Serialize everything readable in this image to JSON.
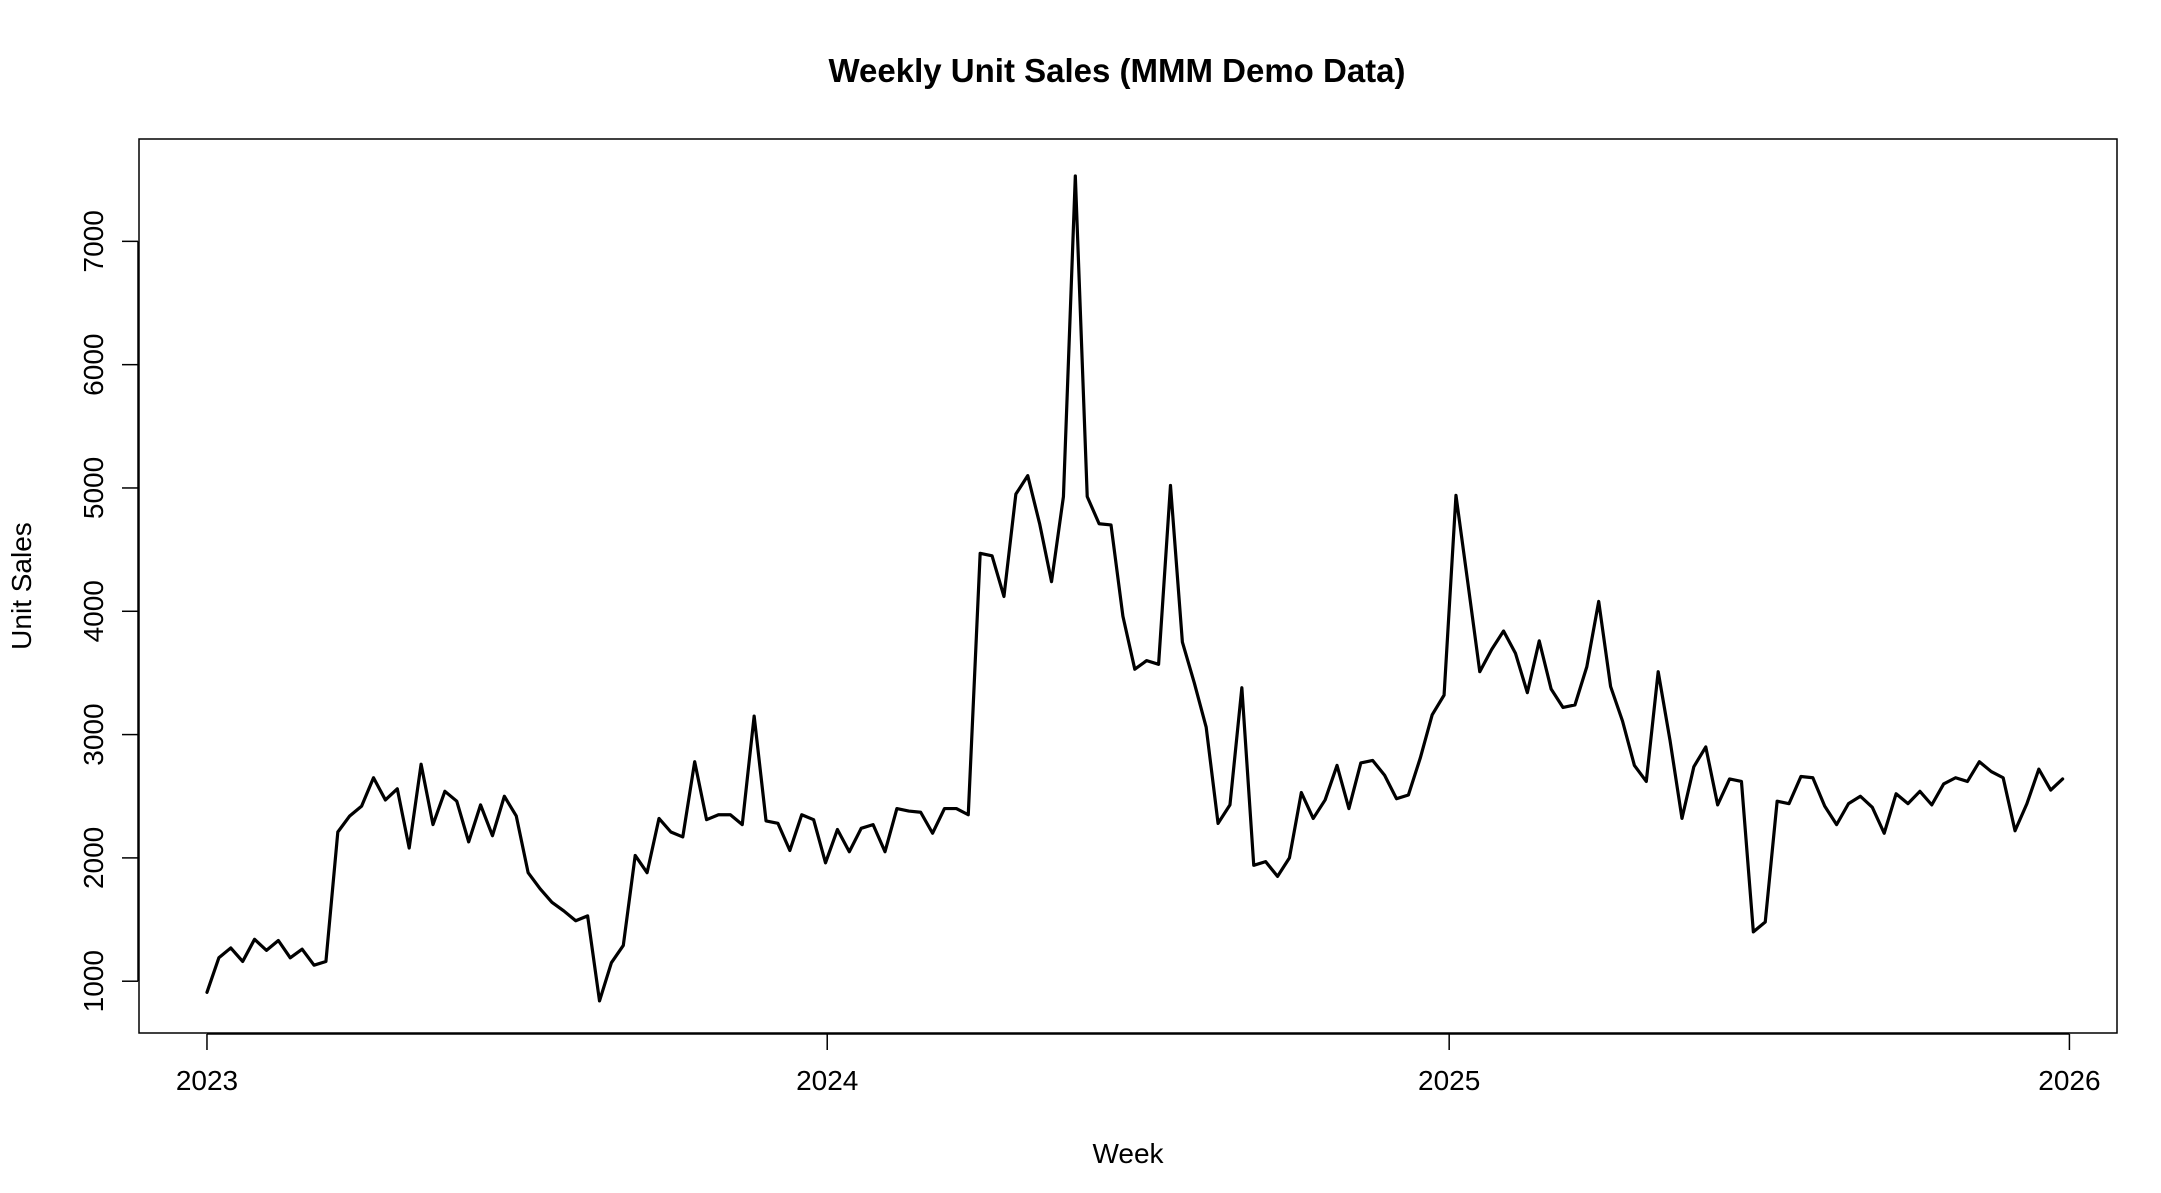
{
  "chart_data": {
    "type": "line",
    "title": "Weekly Unit Sales (MMM Demo Data)",
    "xlabel": "Week",
    "ylabel": "Unit Sales",
    "xlim": [
      "2022-11-22",
      "2026-01-29"
    ],
    "ylim": [
      580,
      7830
    ],
    "x_ticks": [
      {
        "label": "2023",
        "date": "2023-01-01"
      },
      {
        "label": "2024",
        "date": "2024-01-01"
      },
      {
        "label": "2025",
        "date": "2025-01-01"
      },
      {
        "label": "2026",
        "date": "2026-01-01"
      }
    ],
    "y_ticks": [
      1000,
      2000,
      3000,
      4000,
      5000,
      6000,
      7000
    ],
    "grid": false,
    "line_color": "#000000",
    "series": [
      {
        "start_date": "2023-01-01",
        "step_days": 7,
        "values": [
          910,
          1190,
          1270,
          1160,
          1340,
          1250,
          1330,
          1190,
          1260,
          1130,
          1160,
          2210,
          2340,
          2420,
          2650,
          2470,
          2560,
          2080,
          2760,
          2270,
          2540,
          2460,
          2130,
          2430,
          2180,
          2500,
          2340,
          1880,
          1750,
          1640,
          1570,
          1490,
          1530,
          840,
          1150,
          1290,
          2020,
          1880,
          2320,
          2210,
          2170,
          2780,
          2310,
          2350,
          2350,
          2270,
          3150,
          2300,
          2280,
          2060,
          2350,
          2310,
          1960,
          2230,
          2050,
          2240,
          2270,
          2050,
          2400,
          2380,
          2370,
          2200,
          2400,
          2400,
          2350,
          4470,
          4450,
          4120,
          4950,
          5100,
          4710,
          4240,
          4930,
          7530,
          4930,
          4710,
          4700,
          3960,
          3530,
          3600,
          3570,
          5020,
          3750,
          3420,
          3060,
          2280,
          2430,
          3380,
          1940,
          1970,
          1850,
          2000,
          2530,
          2320,
          2470,
          2750,
          2400,
          2770,
          2790,
          2670,
          2480,
          2510,
          2810,
          3160,
          3320,
          4940,
          4230,
          3510,
          3690,
          3840,
          3660,
          3340,
          3760,
          3370,
          3220,
          3240,
          3550,
          4080,
          3390,
          3110,
          2750,
          2620,
          3510,
          2950,
          2320,
          2740,
          2900,
          2430,
          2640,
          2620,
          1400,
          1480,
          2460,
          2440,
          2660,
          2650,
          2420,
          2270,
          2440,
          2500,
          2410,
          2200,
          2520,
          2440,
          2540,
          2430,
          2600,
          2650,
          2620,
          2780,
          2700,
          2650,
          2220,
          2440,
          2720,
          2550,
          2640
        ]
      }
    ]
  }
}
